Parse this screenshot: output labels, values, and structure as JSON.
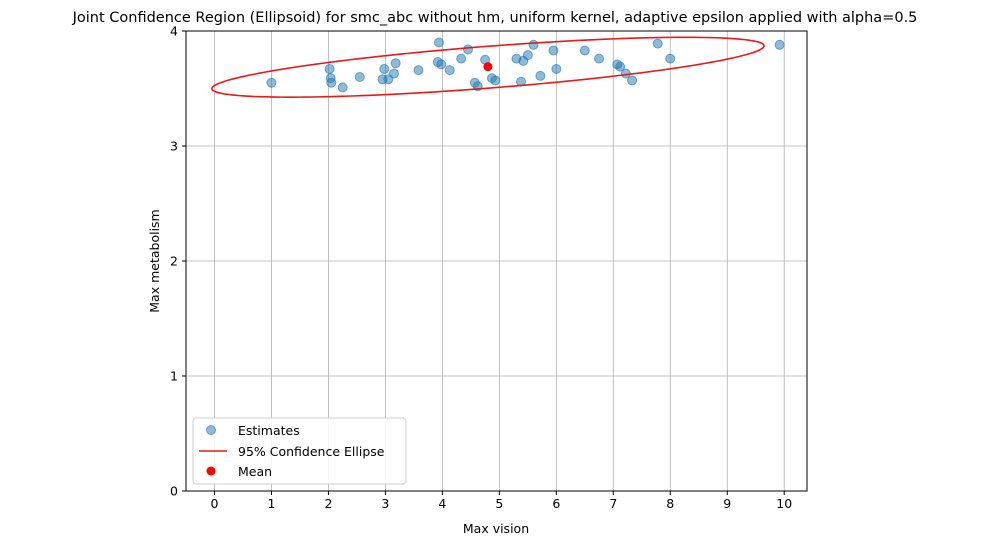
{
  "chart_data": {
    "type": "scatter",
    "title": "Joint Confidence Region (Ellipsoid) for smc_abc without hm, uniform kernel, adaptive epsilon applied with alpha=0.5",
    "xlabel": "Max vision",
    "ylabel": "Max metabolism",
    "xlim": [
      -0.5,
      10.4
    ],
    "ylim": [
      0,
      4
    ],
    "xticks": [
      0,
      1,
      2,
      3,
      4,
      5,
      6,
      7,
      8,
      9,
      10
    ],
    "yticks": [
      0,
      1,
      2,
      3,
      4
    ],
    "grid": true,
    "legend_position": "lower-left",
    "series": [
      {
        "name": "Estimates",
        "kind": "scatter",
        "color": "#1f77b4",
        "points": [
          [
            1.0,
            3.55
          ],
          [
            2.02,
            3.67
          ],
          [
            2.04,
            3.59
          ],
          [
            2.05,
            3.55
          ],
          [
            2.25,
            3.51
          ],
          [
            2.55,
            3.6
          ],
          [
            2.95,
            3.58
          ],
          [
            2.98,
            3.67
          ],
          [
            3.05,
            3.58
          ],
          [
            3.15,
            3.63
          ],
          [
            3.18,
            3.72
          ],
          [
            3.58,
            3.66
          ],
          [
            3.92,
            3.73
          ],
          [
            3.94,
            3.9
          ],
          [
            3.98,
            3.71
          ],
          [
            4.13,
            3.66
          ],
          [
            4.33,
            3.76
          ],
          [
            4.45,
            3.84
          ],
          [
            4.57,
            3.55
          ],
          [
            4.62,
            3.52
          ],
          [
            4.75,
            3.75
          ],
          [
            4.87,
            3.59
          ],
          [
            4.93,
            3.57
          ],
          [
            5.3,
            3.76
          ],
          [
            5.38,
            3.56
          ],
          [
            5.42,
            3.74
          ],
          [
            5.5,
            3.79
          ],
          [
            5.6,
            3.88
          ],
          [
            5.72,
            3.61
          ],
          [
            5.95,
            3.83
          ],
          [
            6.0,
            3.67
          ],
          [
            6.5,
            3.83
          ],
          [
            6.75,
            3.76
          ],
          [
            7.07,
            3.71
          ],
          [
            7.12,
            3.69
          ],
          [
            7.22,
            3.63
          ],
          [
            7.33,
            3.57
          ],
          [
            7.78,
            3.89
          ],
          [
            8.0,
            3.76
          ],
          [
            9.92,
            3.88
          ]
        ]
      },
      {
        "name": "95% Confidence Ellipse",
        "kind": "line",
        "color": "#e41a1c",
        "ellipse": {
          "center": [
            4.8,
            3.685
          ],
          "semi_major": 4.85,
          "semi_minor": 0.182,
          "angle_deg": 2.2
        }
      },
      {
        "name": "Mean",
        "kind": "scatter",
        "color": "#ff0000",
        "points": [
          [
            4.8,
            3.69
          ]
        ]
      }
    ]
  }
}
